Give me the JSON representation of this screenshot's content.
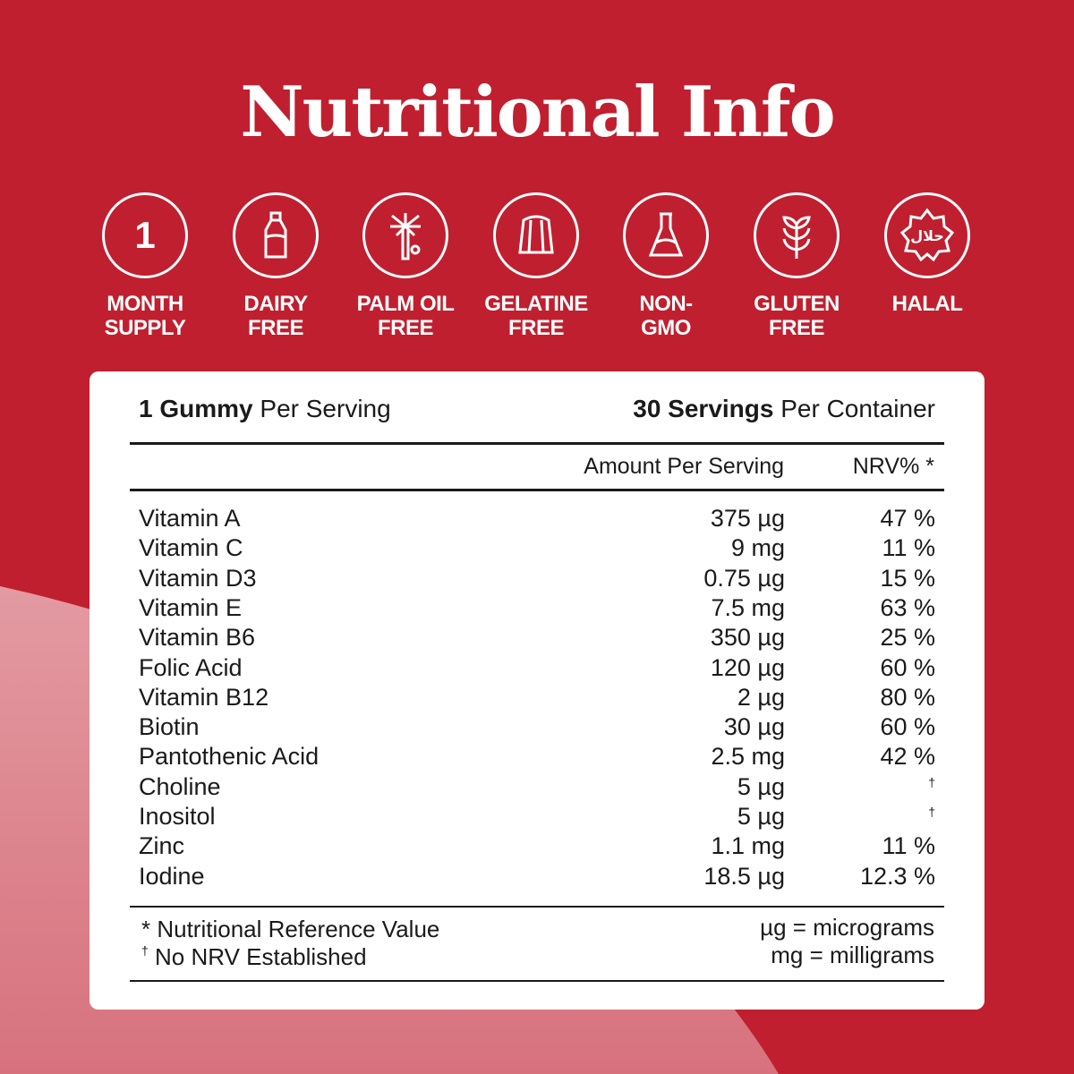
{
  "title": "Nutritional Info",
  "colors": {
    "background": "#C01F2F",
    "accent_curve": "#DC8790",
    "card": "#FFFFFF"
  },
  "badges": [
    {
      "icon": "number-one-icon",
      "line1": "MONTH",
      "line2": "SUPPLY",
      "glyph": "1"
    },
    {
      "icon": "milk-bottle-icon",
      "line1": "DAIRY",
      "line2": "FREE"
    },
    {
      "icon": "palm-tree-icon",
      "line1": "PALM OIL",
      "line2": "FREE"
    },
    {
      "icon": "jelly-icon",
      "line1": "GELATINE",
      "line2": "FREE"
    },
    {
      "icon": "flask-icon",
      "line1": "NON-",
      "line2": "GMO"
    },
    {
      "icon": "wheat-icon",
      "line1": "GLUTEN",
      "line2": "FREE"
    },
    {
      "icon": "halal-seal-icon",
      "line1": "HALAL",
      "line2": "",
      "seal_text": "حلال"
    }
  ],
  "table": {
    "serving_bold": "1 Gummy",
    "serving_rest": " Per Serving",
    "container_bold": "30 Servings",
    "container_rest": " Per Container",
    "col_amount": "Amount Per Serving",
    "col_nrv": "NRV% *",
    "rows": [
      {
        "name": "Vitamin A",
        "amount": "375 µg",
        "nrv": "47 %"
      },
      {
        "name": "Vitamin C",
        "amount": "9 mg",
        "nrv": "11 %"
      },
      {
        "name": "Vitamin D3",
        "amount": "0.75 µg",
        "nrv": "15 %"
      },
      {
        "name": "Vitamin E",
        "amount": "7.5 mg",
        "nrv": "63 %"
      },
      {
        "name": "Vitamin B6",
        "amount": "350 µg",
        "nrv": "25 %"
      },
      {
        "name": "Folic Acid",
        "amount": "120 µg",
        "nrv": "60 %"
      },
      {
        "name": "Vitamin B12",
        "amount": "2 µg",
        "nrv": "80 %"
      },
      {
        "name": "Biotin",
        "amount": "30 µg",
        "nrv": "60 %"
      },
      {
        "name": "Pantothenic Acid",
        "amount": "2.5 mg",
        "nrv": "42 %"
      },
      {
        "name": "Choline",
        "amount": "5 µg",
        "nrv": "†"
      },
      {
        "name": "Inositol",
        "amount": "5 µg",
        "nrv": "†"
      },
      {
        "name": "Zinc",
        "amount": "1.1 mg",
        "nrv": "11 %"
      },
      {
        "name": "Iodine",
        "amount": "18.5 µg",
        "nrv": "12.3 %"
      }
    ],
    "footnote_1": "* Nutritional Reference Value",
    "footnote_2_mark": "†",
    "footnote_2": " No NRV Established",
    "unit_1": "µg = micrograms",
    "unit_2": "mg = milligrams"
  }
}
